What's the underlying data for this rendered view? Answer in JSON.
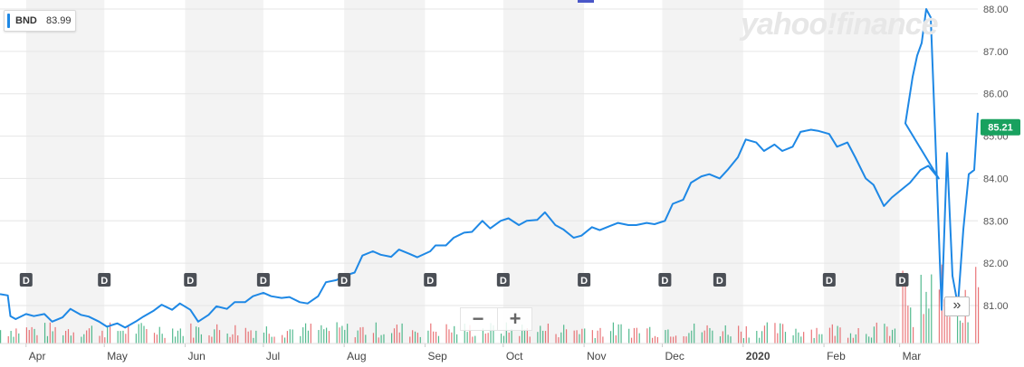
{
  "legend": {
    "ticker": "BND",
    "value": "83.99",
    "color": "#1e88e5"
  },
  "watermark": "yahoo!finance",
  "controls": {
    "zoom_out": "−",
    "zoom_in": "+",
    "expand": "»"
  },
  "colors": {
    "line": "#1e88e5",
    "vol_up": "#1aa36a",
    "vol_down": "#e2474b",
    "band": "#f3f3f3",
    "price_tag": "#19a15f",
    "dividend_marker": "#4b4f56"
  },
  "chart_data": {
    "type": "line",
    "title": "",
    "series": [
      {
        "name": "BND",
        "last_price": 85.21
      }
    ],
    "ylim": [
      80.2,
      88.0
    ],
    "yticks": [
      81.0,
      82.0,
      83.0,
      84.0,
      85.0,
      86.0,
      87.0,
      88.0
    ],
    "ytick_labels": [
      "81.00",
      "82.00",
      "83.00",
      "84.00",
      "85.00",
      "86.00",
      "87.00",
      "88.00"
    ],
    "xlim": [
      "2019-03-22",
      "2020-03-31"
    ],
    "months": [
      {
        "label": "Apr",
        "date": "2019-04-01"
      },
      {
        "label": "May",
        "date": "2019-05-01"
      },
      {
        "label": "Jun",
        "date": "2019-06-01"
      },
      {
        "label": "Jul",
        "date": "2019-07-01"
      },
      {
        "label": "Aug",
        "date": "2019-08-01"
      },
      {
        "label": "Sep",
        "date": "2019-09-01"
      },
      {
        "label": "Oct",
        "date": "2019-10-01"
      },
      {
        "label": "Nov",
        "date": "2019-11-01"
      },
      {
        "label": "Dec",
        "date": "2019-12-01"
      },
      {
        "label": "2020",
        "date": "2020-01-01"
      },
      {
        "label": "Feb",
        "date": "2020-02-01"
      },
      {
        "label": "Mar",
        "date": "2020-03-01"
      }
    ],
    "dividends": [
      "2019-04-01",
      "2019-05-01",
      "2019-06-03",
      "2019-07-01",
      "2019-08-01",
      "2019-09-03",
      "2019-10-01",
      "2019-11-01",
      "2019-12-02",
      "2019-12-23",
      "2020-02-03",
      "2020-03-02"
    ],
    "dividend_label": "D",
    "price_points": [
      [
        "2019-03-22",
        81.27
      ],
      [
        "2019-03-25",
        81.24
      ],
      [
        "2019-03-26",
        80.75
      ],
      [
        "2019-03-28",
        80.68
      ],
      [
        "2019-04-01",
        80.8
      ],
      [
        "2019-04-04",
        80.75
      ],
      [
        "2019-04-08",
        80.8
      ],
      [
        "2019-04-11",
        80.62
      ],
      [
        "2019-04-15",
        80.72
      ],
      [
        "2019-04-18",
        80.92
      ],
      [
        "2019-04-22",
        80.78
      ],
      [
        "2019-04-25",
        80.74
      ],
      [
        "2019-04-29",
        80.62
      ],
      [
        "2019-05-02",
        80.5
      ],
      [
        "2019-05-06",
        80.58
      ],
      [
        "2019-05-09",
        80.48
      ],
      [
        "2019-05-13",
        80.62
      ],
      [
        "2019-05-16",
        80.74
      ],
      [
        "2019-05-20",
        80.88
      ],
      [
        "2019-05-23",
        81.02
      ],
      [
        "2019-05-27",
        80.9
      ],
      [
        "2019-05-30",
        81.05
      ],
      [
        "2019-06-03",
        80.9
      ],
      [
        "2019-06-06",
        80.62
      ],
      [
        "2019-06-10",
        80.78
      ],
      [
        "2019-06-13",
        80.98
      ],
      [
        "2019-06-17",
        80.92
      ],
      [
        "2019-06-20",
        81.08
      ],
      [
        "2019-06-24",
        81.08
      ],
      [
        "2019-06-27",
        81.22
      ],
      [
        "2019-07-01",
        81.3
      ],
      [
        "2019-07-04",
        81.22
      ],
      [
        "2019-07-08",
        81.18
      ],
      [
        "2019-07-11",
        81.2
      ],
      [
        "2019-07-15",
        81.08
      ],
      [
        "2019-07-18",
        81.05
      ],
      [
        "2019-07-22",
        81.22
      ],
      [
        "2019-07-25",
        81.55
      ],
      [
        "2019-07-29",
        81.6
      ],
      [
        "2019-08-01",
        81.7
      ],
      [
        "2019-08-05",
        81.78
      ],
      [
        "2019-08-08",
        82.18
      ],
      [
        "2019-08-12",
        82.28
      ],
      [
        "2019-08-15",
        82.2
      ],
      [
        "2019-08-19",
        82.15
      ],
      [
        "2019-08-22",
        82.32
      ],
      [
        "2019-08-26",
        82.22
      ],
      [
        "2019-08-29",
        82.14
      ],
      [
        "2019-09-03",
        82.28
      ],
      [
        "2019-09-05",
        82.42
      ],
      [
        "2019-09-09",
        82.42
      ],
      [
        "2019-09-12",
        82.6
      ],
      [
        "2019-09-16",
        82.72
      ],
      [
        "2019-09-19",
        82.74
      ],
      [
        "2019-09-23",
        83.0
      ],
      [
        "2019-09-26",
        82.82
      ],
      [
        "2019-09-30",
        83.0
      ],
      [
        "2019-10-03",
        83.06
      ],
      [
        "2019-10-07",
        82.9
      ],
      [
        "2019-10-10",
        83.0
      ],
      [
        "2019-10-14",
        83.02
      ],
      [
        "2019-10-17",
        83.2
      ],
      [
        "2019-10-21",
        82.9
      ],
      [
        "2019-10-24",
        82.8
      ],
      [
        "2019-10-28",
        82.6
      ],
      [
        "2019-10-31",
        82.65
      ],
      [
        "2019-11-04",
        82.85
      ],
      [
        "2019-11-07",
        82.78
      ],
      [
        "2019-11-11",
        82.88
      ],
      [
        "2019-11-14",
        82.95
      ],
      [
        "2019-11-18",
        82.9
      ],
      [
        "2019-11-21",
        82.9
      ],
      [
        "2019-11-25",
        82.95
      ],
      [
        "2019-11-28",
        82.92
      ],
      [
        "2019-12-02",
        83.0
      ],
      [
        "2019-12-05",
        83.4
      ],
      [
        "2019-12-09",
        83.5
      ],
      [
        "2019-12-12",
        83.9
      ],
      [
        "2019-12-16",
        84.05
      ],
      [
        "2019-12-19",
        84.1
      ],
      [
        "2019-12-23",
        84.0
      ],
      [
        "2019-12-26",
        84.2
      ],
      [
        "2019-12-30",
        84.5
      ],
      [
        "2020-01-02",
        84.92
      ],
      [
        "2020-01-06",
        84.85
      ],
      [
        "2020-01-09",
        84.65
      ],
      [
        "2020-01-13",
        84.8
      ],
      [
        "2020-01-16",
        84.65
      ],
      [
        "2020-01-20",
        84.75
      ],
      [
        "2020-01-23",
        85.1
      ],
      [
        "2020-01-27",
        85.15
      ],
      [
        "2020-01-30",
        85.12
      ],
      [
        "2020-02-03",
        85.05
      ],
      [
        "2020-02-06",
        84.75
      ],
      [
        "2020-02-10",
        84.85
      ],
      [
        "2020-02-13",
        84.5
      ],
      [
        "2020-02-17",
        84.0
      ],
      [
        "2020-02-20",
        83.85
      ],
      [
        "2020-02-24",
        83.35
      ],
      [
        "2020-02-27",
        83.55
      ],
      [
        "2020-03-02",
        83.75
      ],
      [
        "2020-03-05",
        83.9
      ],
      [
        "2020-03-09",
        84.2
      ],
      [
        "2020-03-12",
        84.3
      ],
      [
        "2020-03-16",
        84.0
      ]
    ],
    "price_tag": "85.21"
  }
}
